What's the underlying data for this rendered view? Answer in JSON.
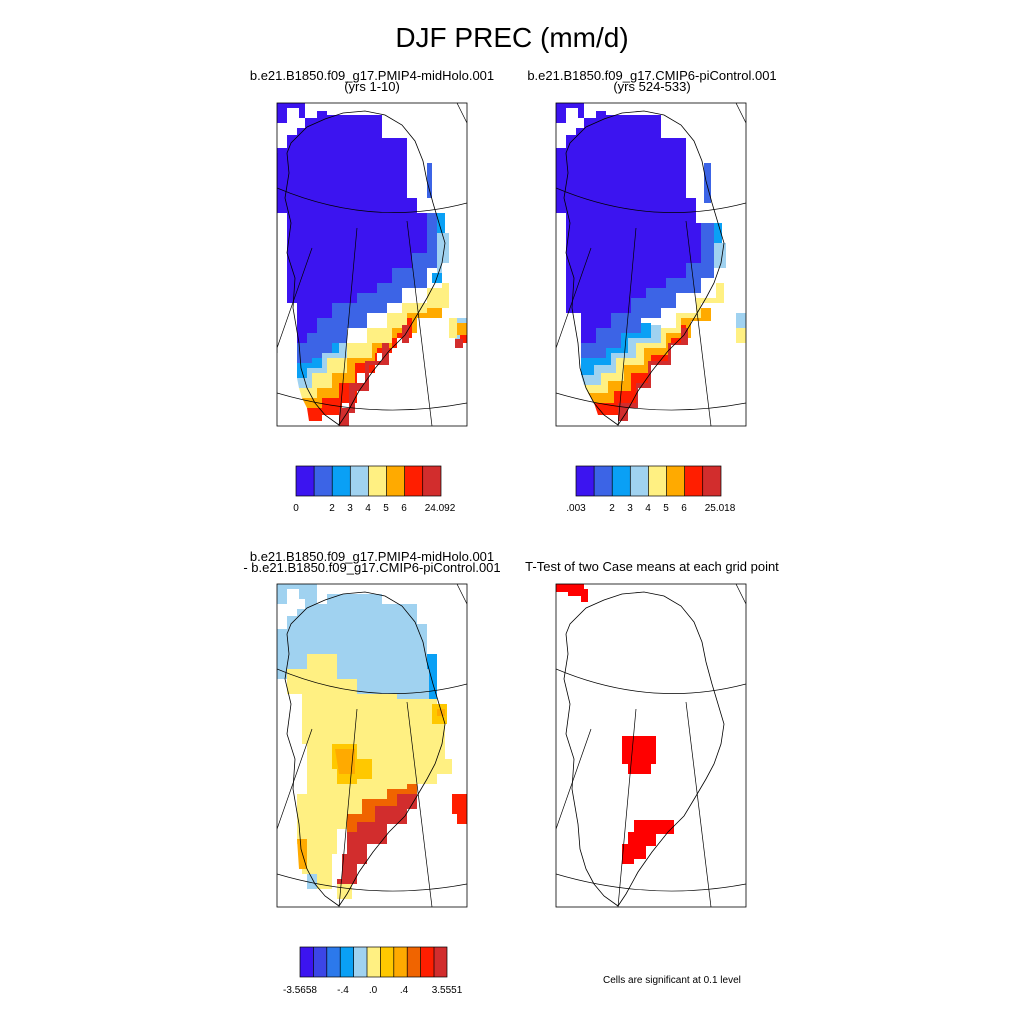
{
  "figure": {
    "title": "DJF PREC (mm/d)",
    "note": "Cells are significant at 0.1 level"
  },
  "colors": {
    "abs_palette": [
      "#3c14f0",
      "#3c64e6",
      "#0aa0f5",
      "#a0d2f0",
      "#fff082",
      "#ffaa00",
      "#ff1e00",
      "#d22d2d"
    ],
    "diff_palette": [
      "#3c14f0",
      "#3c46e6",
      "#2c79eb",
      "#0aa0f5",
      "#a0d2f0",
      "#fff082",
      "#ffc800",
      "#ffaa00",
      "#f06400",
      "#ff1e00",
      "#d22d2d"
    ],
    "significant": "#ff0000",
    "frame": "#000000"
  },
  "panels": [
    {
      "id": "case1",
      "title_line1": "b.e21.B1850.f09_g17.PMIP4-midHolo.001",
      "title_line2": "(yrs 1-10)",
      "colorbar_labels": [
        "0",
        "2",
        "3",
        "4",
        "5",
        "6",
        "24.092"
      ]
    },
    {
      "id": "case2",
      "title_line1": "b.e21.B1850.f09_g17.CMIP6-piControl.001",
      "title_line2": "(yrs 524-533)",
      "colorbar_labels": [
        ".003",
        "2",
        "3",
        "4",
        "5",
        "6",
        "25.018"
      ]
    },
    {
      "id": "diff",
      "title_line1": "b.e21.B1850.f09_g17.PMIP4-midHolo.001",
      "title_line2": "- b.e21.B1850.f09_g17.CMIP6-piControl.001",
      "colorbar_labels": [
        "-3.5658",
        "-.4",
        ".0",
        ".4",
        "3.5551"
      ]
    },
    {
      "id": "ttest",
      "title_line1": "T-Test of two Case means at each grid point",
      "title_line2": ""
    }
  ]
}
